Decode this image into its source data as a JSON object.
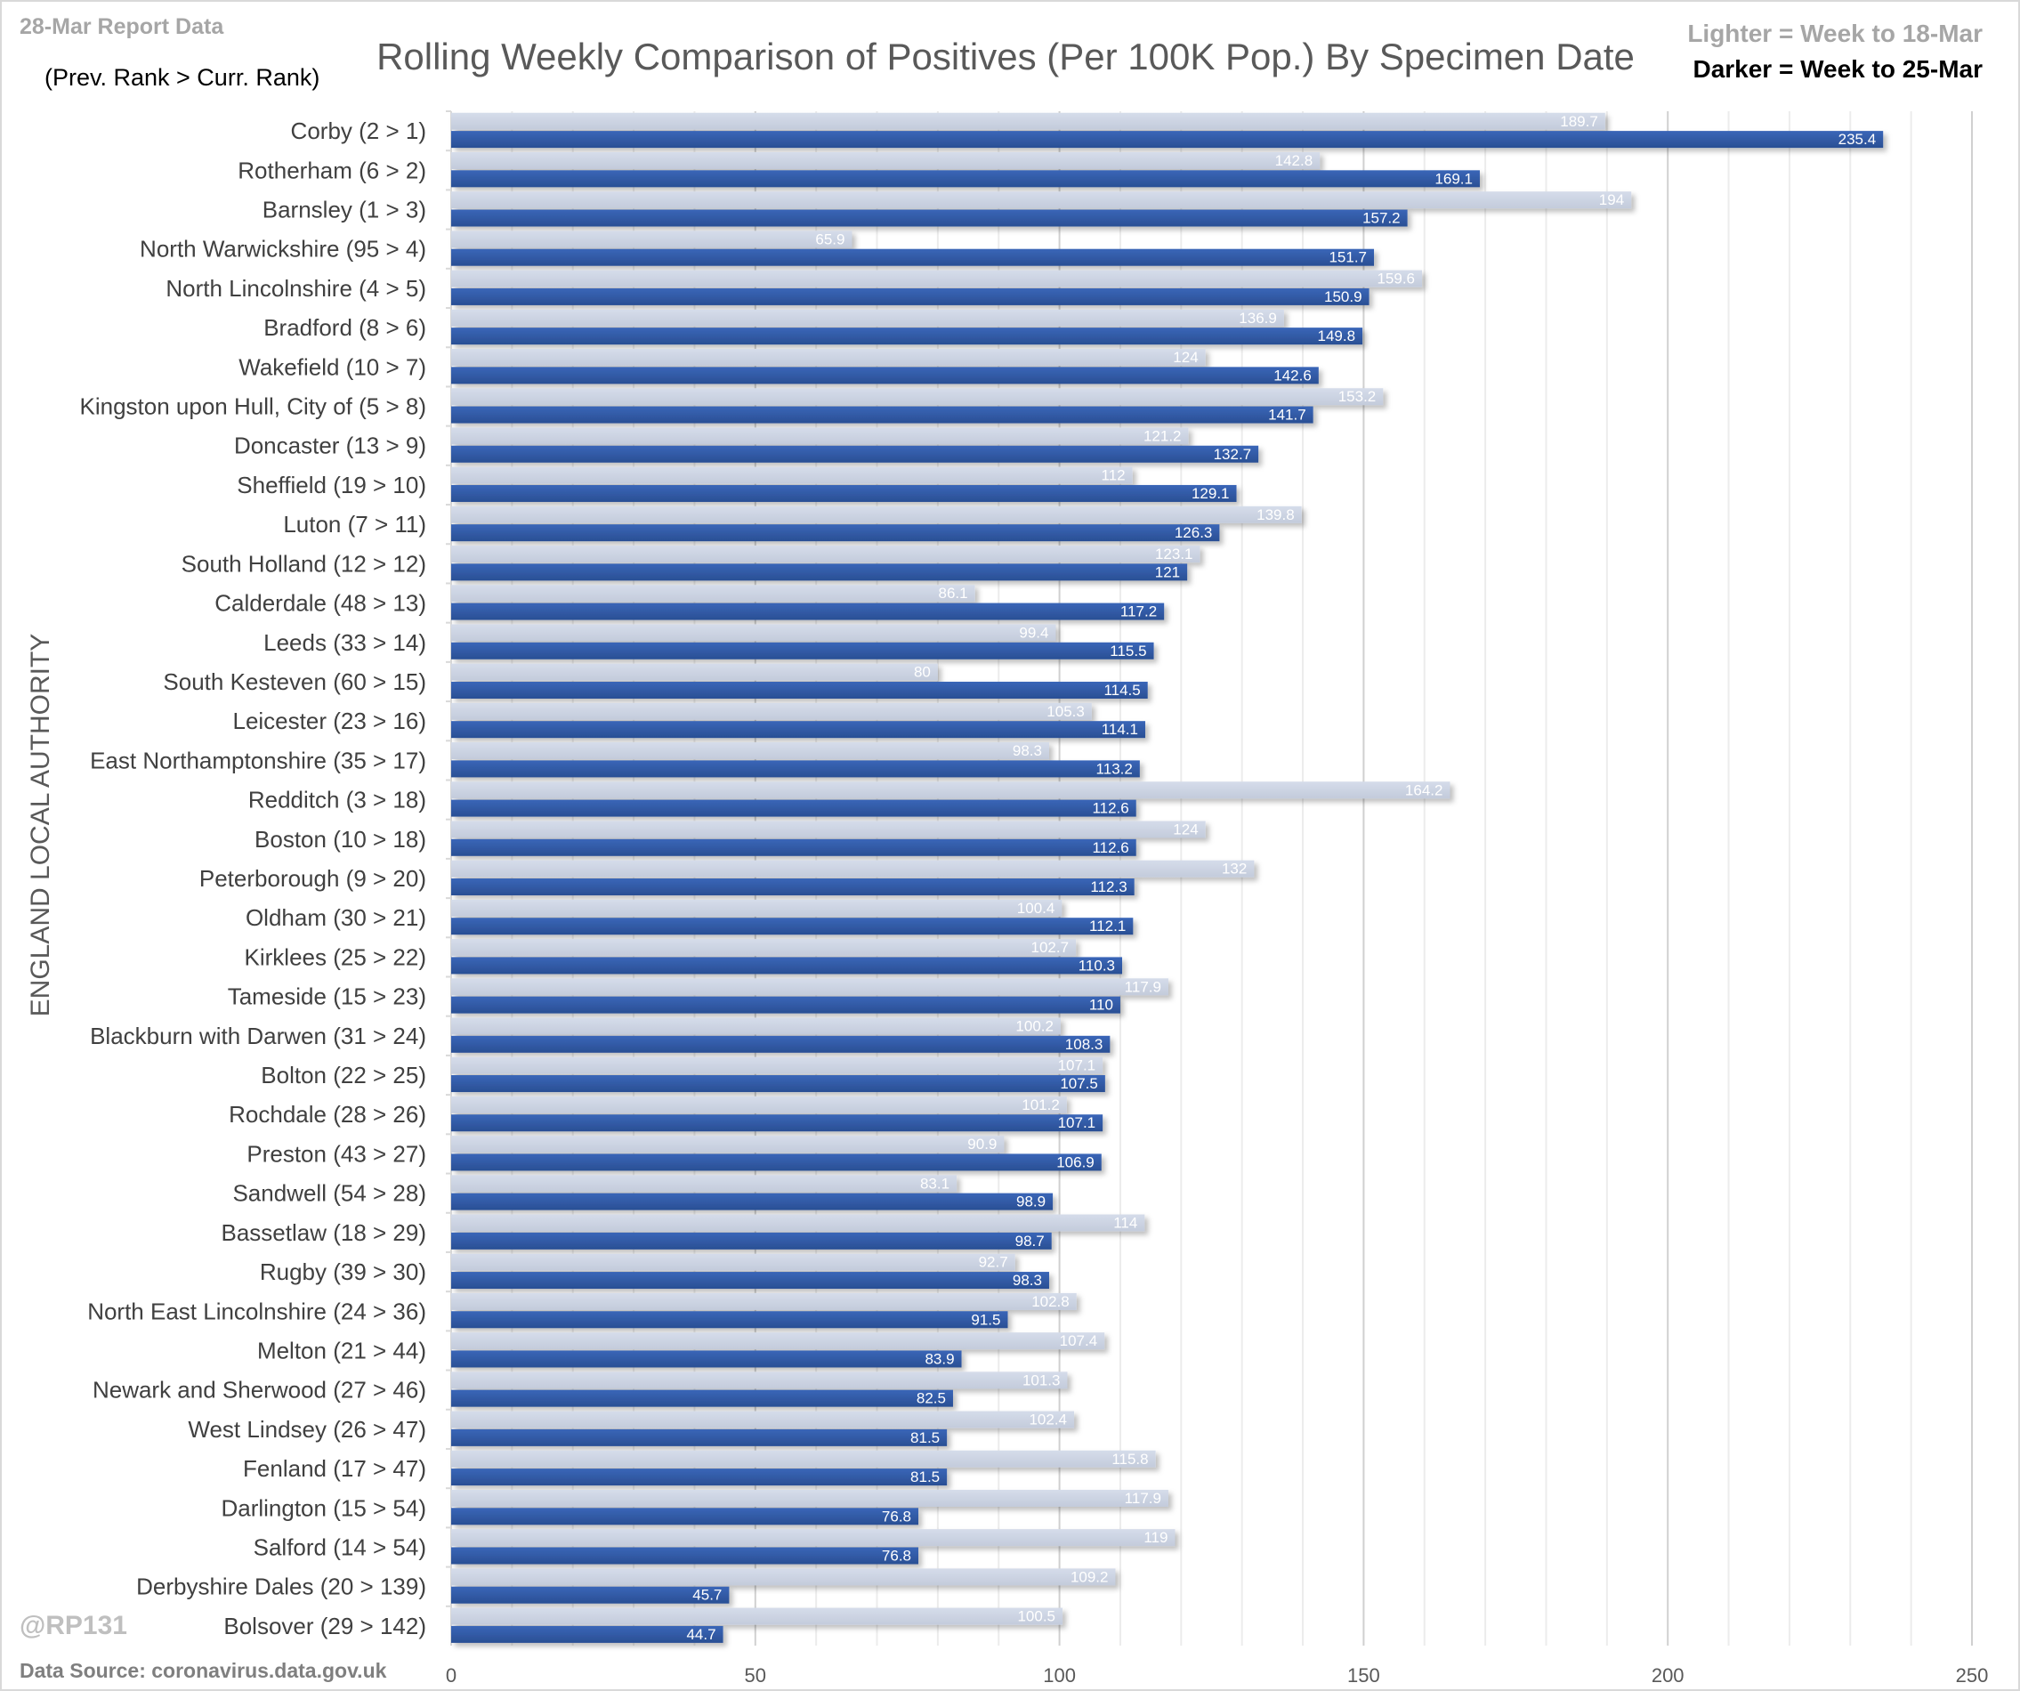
{
  "header": {
    "report_label": "28-Mar Report Data",
    "rank_hint": "(Prev. Rank > Curr. Rank)",
    "legend_lighter": "Lighter =  Week to 18-Mar",
    "legend_darker": "Darker =  Week to 25-Mar"
  },
  "footer": {
    "handle": "@RP131",
    "source": "Data Source: coronavirus.data.gov.uk"
  },
  "colors": {
    "lighter": "#c8d0df",
    "darker": "#2f55a0",
    "grid_minor": "#ececec",
    "grid_major": "#d0d0d0"
  },
  "chart_data": {
    "type": "bar",
    "orientation": "horizontal",
    "title": "Rolling Weekly Comparison of Positives  (Per 100K Pop.) By Specimen Date",
    "xlabel": "",
    "ylabel": "ENGLAND LOCAL AUTHORITY",
    "xlim": [
      0,
      250
    ],
    "xticks": [
      0,
      50,
      100,
      150,
      200,
      250
    ],
    "grid": true,
    "legend": "top-right",
    "categories": [
      "Corby (2 > 1)",
      "Rotherham (6 > 2)",
      "Barnsley (1 > 3)",
      "North Warwickshire (95 > 4)",
      "North Lincolnshire (4 > 5)",
      "Bradford (8 > 6)",
      "Wakefield (10 > 7)",
      "Kingston upon Hull, City of (5 > 8)",
      "Doncaster (13 > 9)",
      "Sheffield (19 > 10)",
      "Luton (7 > 11)",
      "South Holland (12 > 12)",
      "Calderdale (48 > 13)",
      "Leeds (33 > 14)",
      "South Kesteven (60 > 15)",
      "Leicester (23 > 16)",
      "East Northamptonshire (35 > 17)",
      "Redditch (3 > 18)",
      "Boston (10 > 18)",
      "Peterborough (9 > 20)",
      "Oldham (30 > 21)",
      "Kirklees (25 > 22)",
      "Tameside (15 > 23)",
      "Blackburn with Darwen (31 > 24)",
      "Bolton (22 > 25)",
      "Rochdale (28 > 26)",
      "Preston (43 > 27)",
      "Sandwell (54 > 28)",
      "Bassetlaw (18 > 29)",
      "Rugby (39 > 30)",
      "North East Lincolnshire (24 > 36)",
      "Melton (21 > 44)",
      "Newark and Sherwood (27 > 46)",
      "West Lindsey (26 > 47)",
      "Fenland (17 > 47)",
      "Darlington (15 > 54)",
      "Salford (14 > 54)",
      "Derbyshire Dales (20 > 139)",
      "Bolsover (29 > 142)"
    ],
    "series": [
      {
        "name": "Week to 18-Mar",
        "values": [
          189.7,
          142.8,
          194,
          65.9,
          159.6,
          136.9,
          124,
          153.2,
          121.2,
          112,
          139.8,
          123.1,
          86.1,
          99.4,
          80,
          105.3,
          98.3,
          164.2,
          124,
          132,
          100.4,
          102.7,
          117.9,
          100.2,
          107.1,
          101.2,
          90.9,
          83.1,
          114,
          92.7,
          102.8,
          107.4,
          101.3,
          102.4,
          115.8,
          117.9,
          119,
          109.2,
          100.5
        ]
      },
      {
        "name": "Week to 25-Mar",
        "values": [
          235.4,
          169.1,
          157.2,
          151.7,
          150.9,
          149.8,
          142.6,
          141.7,
          132.7,
          129.1,
          126.3,
          121,
          117.2,
          115.5,
          114.5,
          114.1,
          113.2,
          112.6,
          112.6,
          112.3,
          112.1,
          110.3,
          110,
          108.3,
          107.5,
          107.1,
          106.9,
          98.9,
          98.7,
          98.3,
          91.5,
          83.9,
          82.5,
          81.5,
          81.5,
          76.8,
          76.8,
          45.7,
          44.7
        ]
      }
    ]
  }
}
